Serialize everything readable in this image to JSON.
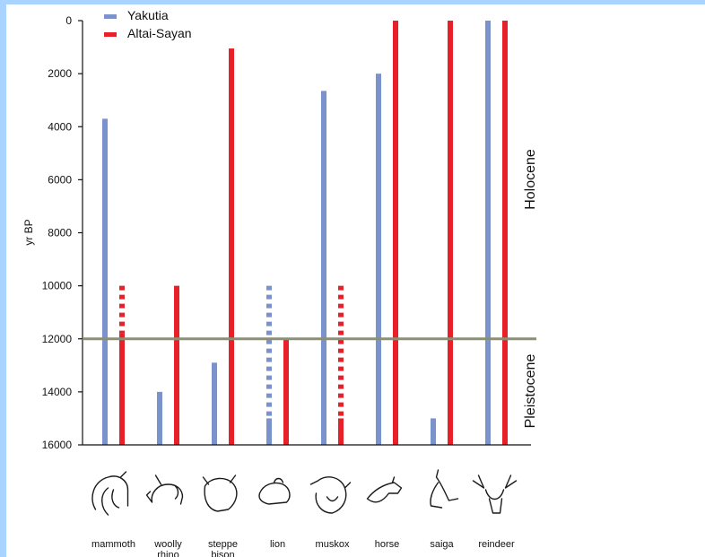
{
  "chart_data": {
    "type": "bar",
    "ylabel": "yr BP",
    "yticks": [
      0,
      2000,
      4000,
      6000,
      8000,
      10000,
      12000,
      14000,
      16000
    ],
    "ylim": [
      0,
      16000
    ],
    "y_inverted": true,
    "legend_position": "top-left",
    "categories": [
      "mammoth",
      "woolly\nrhino",
      "steppe\nbison",
      "lion",
      "muskox",
      "horse",
      "saiga",
      "reindeer"
    ],
    "series": [
      {
        "name": "Yakutia",
        "color": "#7b93cc",
        "bars": [
          {
            "category": "mammoth",
            "solid": [
              3700,
              16000
            ]
          },
          {
            "category": "woolly rhino",
            "solid": [
              14000,
              16000
            ]
          },
          {
            "category": "steppe bison",
            "solid": [
              12900,
              16000
            ]
          },
          {
            "category": "lion",
            "dashed": [
              10000,
              15000
            ],
            "solid": [
              15000,
              16000
            ]
          },
          {
            "category": "muskox",
            "solid": [
              2650,
              16000
            ]
          },
          {
            "category": "horse",
            "solid": [
              2000,
              16000
            ]
          },
          {
            "category": "saiga",
            "solid": [
              15000,
              16000
            ]
          },
          {
            "category": "reindeer",
            "solid": [
              0,
              16000
            ]
          }
        ]
      },
      {
        "name": "Altai-Sayan",
        "color": "#e8202a",
        "bars": [
          {
            "category": "mammoth",
            "dashed": [
              10000,
              11800
            ],
            "solid": [
              11800,
              16000
            ]
          },
          {
            "category": "woolly rhino",
            "solid": [
              10000,
              16000
            ]
          },
          {
            "category": "steppe bison",
            "solid": [
              1050,
              16000
            ]
          },
          {
            "category": "lion",
            "solid": [
              12000,
              16000
            ]
          },
          {
            "category": "muskox",
            "dashed": [
              10000,
              15000
            ],
            "solid": [
              15000,
              16000
            ]
          },
          {
            "category": "horse",
            "solid": [
              0,
              16000
            ]
          },
          {
            "category": "saiga",
            "solid": [
              0,
              16000
            ]
          },
          {
            "category": "reindeer",
            "solid": [
              0,
              16000
            ]
          }
        ]
      }
    ],
    "boundary": {
      "value": 12000,
      "color": "#8c8f78"
    },
    "annotations": {
      "upper": "Holocene",
      "lower": "Pleistocene"
    }
  },
  "animal_icons": [
    "mammoth-icon",
    "woolly-rhino-icon",
    "steppe-bison-icon",
    "lion-icon",
    "muskox-icon",
    "horse-icon",
    "saiga-icon",
    "reindeer-icon"
  ]
}
